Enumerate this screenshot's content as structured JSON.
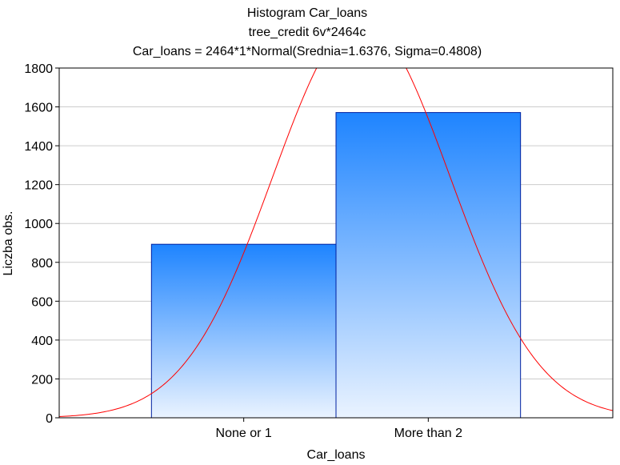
{
  "chart_data": {
    "type": "bar",
    "title_lines": [
      "Histogram     Car_loans",
      "tree_credit 6v*2464c",
      "Car_loans = 2464*1*Normal(Srednia=1.6376, Sigma=0.4808)"
    ],
    "xlabel": "Car_loans",
    "ylabel": "Liczba obs.",
    "categories": [
      "None or 1",
      "More than 2"
    ],
    "values": [
      893,
      1571
    ],
    "ylim": [
      0,
      1800
    ],
    "yticks": [
      "0",
      "200",
      "400",
      "600",
      "800",
      "1000",
      "1200",
      "1400",
      "1600",
      "1800"
    ],
    "grid": true,
    "fit_curve": {
      "type": "normal",
      "n": 2464,
      "mean": 1.6376,
      "sigma": 0.4808,
      "color": "#ff0000"
    },
    "colors": {
      "bar_top": "#1e84ff",
      "bar_bottom": "#eaf3ff",
      "bar_border": "#0020a0",
      "grid": "#cccccc"
    }
  }
}
